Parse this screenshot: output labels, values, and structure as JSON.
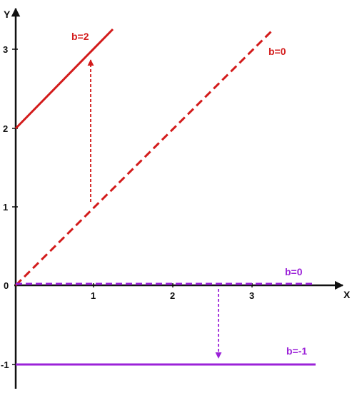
{
  "axes": {
    "x_label": "X",
    "y_label": "Y",
    "x_ticks": [
      "1",
      "2",
      "3"
    ],
    "y_ticks": [
      "-1",
      "0",
      "1",
      "2",
      "3"
    ]
  },
  "colors": {
    "axis": "#111111",
    "red": "#d31b1b",
    "purple": "#9b22d8"
  },
  "lines": {
    "red_shifted": {
      "label": "b=2",
      "style": "solid",
      "equation": "y = x + 2"
    },
    "red_original": {
      "label": "b=0",
      "style": "dashed",
      "equation": "y = x"
    },
    "purple_original": {
      "label": "b=0",
      "style": "dashed",
      "equation": "y = 0"
    },
    "purple_shifted": {
      "label": "b=-1",
      "style": "solid",
      "equation": "y = -1"
    }
  },
  "arrows": {
    "red_shift": {
      "direction": "up",
      "color": "red",
      "style": "dashed"
    },
    "purple_shift": {
      "direction": "down",
      "color": "purple",
      "style": "dashed"
    }
  }
}
